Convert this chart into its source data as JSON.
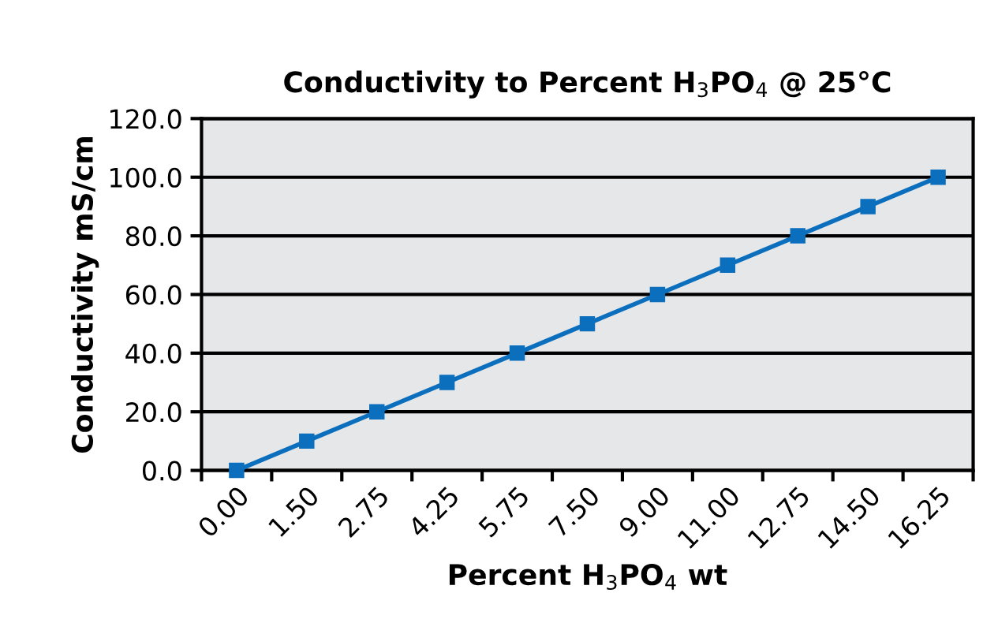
{
  "chart_data": {
    "type": "line",
    "title": "Conductivity to Percent H$_{3}$PO$_{4}$ @ 25°C",
    "xlabel": "Percent H$_{3}$PO$_{4}$ wt",
    "ylabel": "Conductivity mS/cm",
    "categories": [
      "0.00",
      "1.50",
      "2.75",
      "4.25",
      "5.75",
      "7.50",
      "9.00",
      "11.00",
      "12.75",
      "14.50",
      "16.25"
    ],
    "series": [
      {
        "color": "#0b6fbd",
        "values": [
          0,
          10,
          20,
          30,
          40,
          50,
          60,
          70,
          80,
          90,
          100
        ]
      }
    ],
    "ylim": [
      0,
      120
    ],
    "yticks": [
      {
        "value": 0,
        "label": "0.0"
      },
      {
        "value": 20,
        "label": "20.0"
      },
      {
        "value": 40,
        "label": "40.0"
      },
      {
        "value": 60,
        "label": "60.0"
      },
      {
        "value": 80,
        "label": "80.0"
      },
      {
        "value": 100,
        "label": "100.0"
      },
      {
        "value": 120,
        "label": "120.0"
      }
    ],
    "grid": "y",
    "marker": "square",
    "line_style": "solid"
  }
}
